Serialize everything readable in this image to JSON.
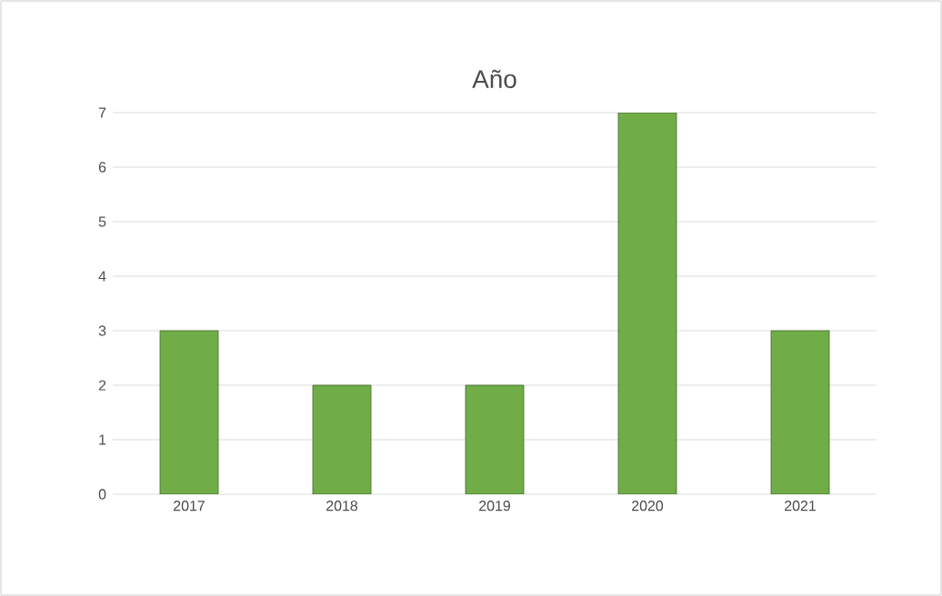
{
  "chart_data": {
    "type": "bar",
    "title": "Año",
    "categories": [
      "2017",
      "2018",
      "2019",
      "2020",
      "2021"
    ],
    "values": [
      3,
      2,
      2,
      7,
      3
    ],
    "color": "#70ad47",
    "ylim": [
      0,
      7
    ],
    "yticks": [
      0,
      1,
      2,
      3,
      4,
      5,
      6,
      7
    ],
    "grid": "y"
  }
}
